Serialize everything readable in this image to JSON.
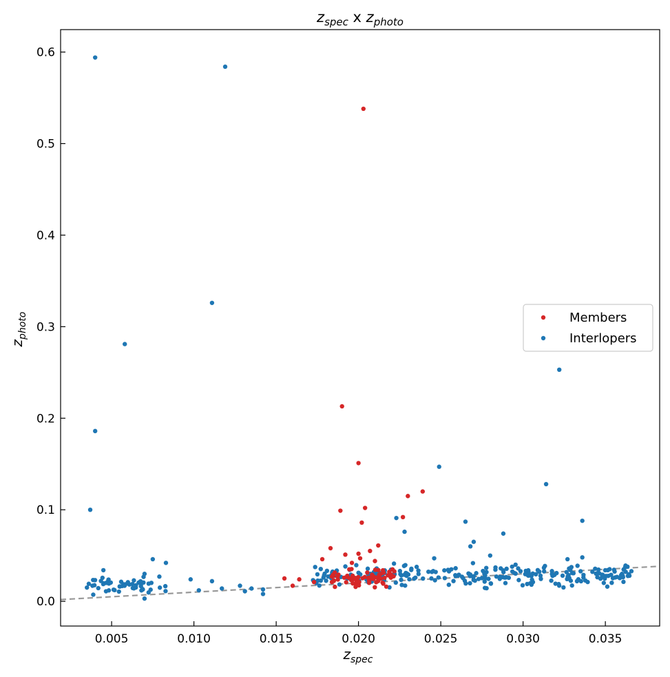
{
  "chart_data": {
    "type": "scatter",
    "title": {
      "main": "z",
      "main_sub": "spec",
      "sep": " x ",
      "second": "z",
      "second_sub": "photo"
    },
    "xlabel": {
      "main": "z",
      "sub": "spec"
    },
    "ylabel": {
      "main": "z",
      "sub": "photo"
    },
    "xlim": [
      0.0019,
      0.0383
    ],
    "ylim": [
      -0.027,
      0.6245
    ],
    "xticks": [
      0.005,
      0.01,
      0.015,
      0.02,
      0.025,
      0.03,
      0.035
    ],
    "xtick_labels": [
      "0.005",
      "0.010",
      "0.015",
      "0.020",
      "0.025",
      "0.030",
      "0.035"
    ],
    "yticks": [
      0.0,
      0.1,
      0.2,
      0.3,
      0.4,
      0.5,
      0.6
    ],
    "ytick_labels": [
      "0.0",
      "0.1",
      "0.2",
      "0.3",
      "0.4",
      "0.5",
      "0.6"
    ],
    "diagonal": {
      "style": "dashed",
      "color": "#999999",
      "description": "y = x"
    },
    "legend": {
      "position": "center-right"
    },
    "series": [
      {
        "name": "Members",
        "color": "#d62728",
        "highlighted": [
          [
            0.0203,
            0.538
          ],
          [
            0.019,
            0.213
          ],
          [
            0.02,
            0.151
          ],
          [
            0.0239,
            0.12
          ],
          [
            0.023,
            0.115
          ],
          [
            0.0204,
            0.102
          ],
          [
            0.0189,
            0.099
          ],
          [
            0.0227,
            0.092
          ],
          [
            0.0202,
            0.086
          ],
          [
            0.0212,
            0.061
          ],
          [
            0.0183,
            0.058
          ],
          [
            0.0207,
            0.055
          ],
          [
            0.02,
            0.052
          ],
          [
            0.0192,
            0.051
          ],
          [
            0.0201,
            0.047
          ],
          [
            0.0178,
            0.046
          ],
          [
            0.021,
            0.044
          ],
          [
            0.0196,
            0.042
          ],
          [
            0.0155,
            0.025
          ],
          [
            0.0164,
            0.024
          ],
          [
            0.016,
            0.017
          ],
          [
            0.0173,
            0.021
          ]
        ],
        "cluster": {
          "x_range": [
            0.018,
            0.0222
          ],
          "y_range": [
            0.012,
            0.04
          ],
          "count": 70
        }
      },
      {
        "name": "Interlopers",
        "color": "#1f77b4",
        "highlighted": [
          [
            0.004,
            0.594
          ],
          [
            0.0119,
            0.584
          ],
          [
            0.0111,
            0.326
          ],
          [
            0.0058,
            0.281
          ],
          [
            0.004,
            0.186
          ],
          [
            0.0037,
            0.1
          ],
          [
            0.0322,
            0.253
          ],
          [
            0.0249,
            0.147
          ],
          [
            0.0314,
            0.128
          ],
          [
            0.0223,
            0.091
          ],
          [
            0.0265,
            0.087
          ],
          [
            0.0336,
            0.088
          ],
          [
            0.0228,
            0.076
          ],
          [
            0.0288,
            0.074
          ],
          [
            0.027,
            0.065
          ],
          [
            0.0268,
            0.06
          ],
          [
            0.0246,
            0.047
          ],
          [
            0.028,
            0.05
          ],
          [
            0.0327,
            0.046
          ],
          [
            0.0336,
            0.048
          ],
          [
            0.0045,
            0.034
          ],
          [
            0.0075,
            0.046
          ],
          [
            0.0083,
            0.042
          ],
          [
            0.007,
            0.03
          ],
          [
            0.0079,
            0.027
          ],
          [
            0.0098,
            0.024
          ],
          [
            0.0111,
            0.022
          ],
          [
            0.0128,
            0.017
          ],
          [
            0.0142,
            0.013
          ],
          [
            0.0142,
            0.008
          ],
          [
            0.0135,
            0.014
          ],
          [
            0.0103,
            0.012
          ],
          [
            0.0117,
            0.014
          ],
          [
            0.007,
            0.003
          ],
          [
            0.0035,
            0.015
          ],
          [
            0.0131,
            0.011
          ]
        ],
        "cluster_low_z": {
          "x_range": [
            0.0034,
            0.0084
          ],
          "y_range": [
            0.004,
            0.03
          ],
          "count": 55
        },
        "cluster_high_z": {
          "x_range": [
            0.0172,
            0.0368
          ],
          "y_range": [
            0.012,
            0.045
          ],
          "count": 260
        }
      }
    ]
  }
}
